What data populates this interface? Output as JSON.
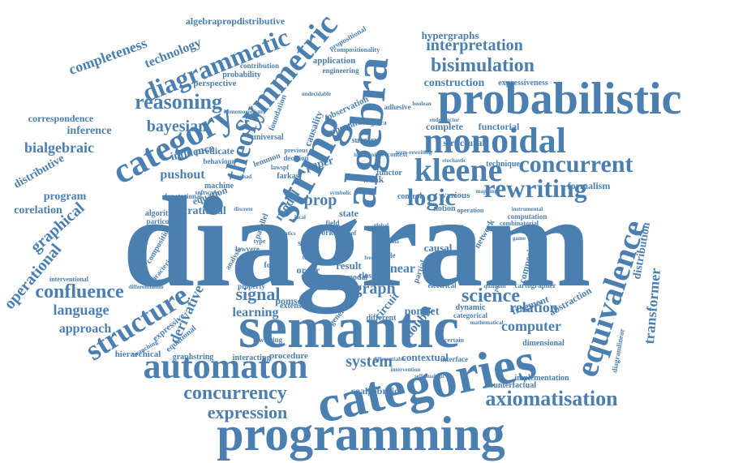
{
  "color": "#4a7fb0",
  "words": [
    "diagram",
    "semantic",
    "categories",
    "programming",
    "probabilistic",
    "monoidal",
    "string",
    "algebra",
    "category",
    "automaton",
    "equivalence",
    "rewriting",
    "kleene",
    "concurrent",
    "structure",
    "symmetric",
    "diagrammatic",
    "concurrency",
    "expression",
    "axiomatisation",
    "theory",
    "logic",
    "bisimulation",
    "interpretation",
    "reasoning",
    "confluence",
    "science",
    "graph",
    "signal",
    "completeness",
    "bayesian",
    "operational",
    "graphical",
    "bialgebraic",
    "language",
    "approach",
    "computer",
    "relation",
    "system",
    "transformer",
    "distribution",
    "technology",
    "algebrapropdistributive",
    "hypergraphs",
    "construction",
    "correspondence",
    "inference",
    "distributive",
    "corelation",
    "program",
    "pushout",
    "influence",
    "derivative",
    "learning",
    "pomset",
    "pomsets",
    "linear",
    "double",
    "circuit",
    "series",
    "causal",
    "result",
    "order",
    "model",
    "prop",
    "state",
    "rational",
    "formalism",
    "fragment",
    "abstraction",
    "functorial",
    "complete",
    "structural",
    "various",
    "network",
    "coalgebraic",
    "contextual",
    "procedure",
    "extension",
    "interacting",
    "graphstring",
    "hierarchical",
    "expressive",
    "equational",
    "dimensional",
    "implementation",
    "counterfactual",
    "cartographer",
    "denotational",
    "expressiveness",
    "application",
    "engineering",
    "perspective",
    "probability",
    "contribution",
    "propositional",
    "compositionality",
    "foundation",
    "causality",
    "important",
    "observation",
    "universal",
    "previous",
    "decision",
    "paper",
    "lemmon",
    "predicate",
    "behaviour",
    "machine",
    "equation",
    "software",
    "particular",
    "algorithm",
    "compositional",
    "characterisation",
    "interventional",
    "differentiation",
    "composition",
    "computation",
    "combinatorial",
    "surgery",
    "weak",
    "functor",
    "control",
    "notion",
    "operation",
    "instrumental",
    "technique",
    "closed",
    "simple",
    "partial",
    "modal",
    "milner",
    "different",
    "general",
    "electrical",
    "dynamic",
    "categorical",
    "mathematical",
    "interface",
    "certain",
    "differentiable",
    "intervention",
    "lawstring",
    "lawvere",
    "analysis",
    "formal",
    "study",
    "work",
    "property",
    "reverse",
    "concept",
    "coalgebra",
    "undecidable",
    "adhesive",
    "endofunctor",
    "context",
    "intuitionistic",
    "farkas",
    "lawspf",
    "field",
    "branching",
    "parallel",
    "diagramlinear",
    "tree",
    "self-dualogic",
    "poly-rewriting",
    "semantics",
    "discrete",
    "symbolic",
    "proof",
    "local",
    "global",
    "formula",
    "type",
    "object",
    "term",
    "open",
    "free",
    "unit",
    "natural",
    "mapping",
    "quantum",
    "game",
    "net",
    "term-rewriting",
    "homomorphism",
    "monad",
    "stochastic",
    "boolean"
  ]
}
